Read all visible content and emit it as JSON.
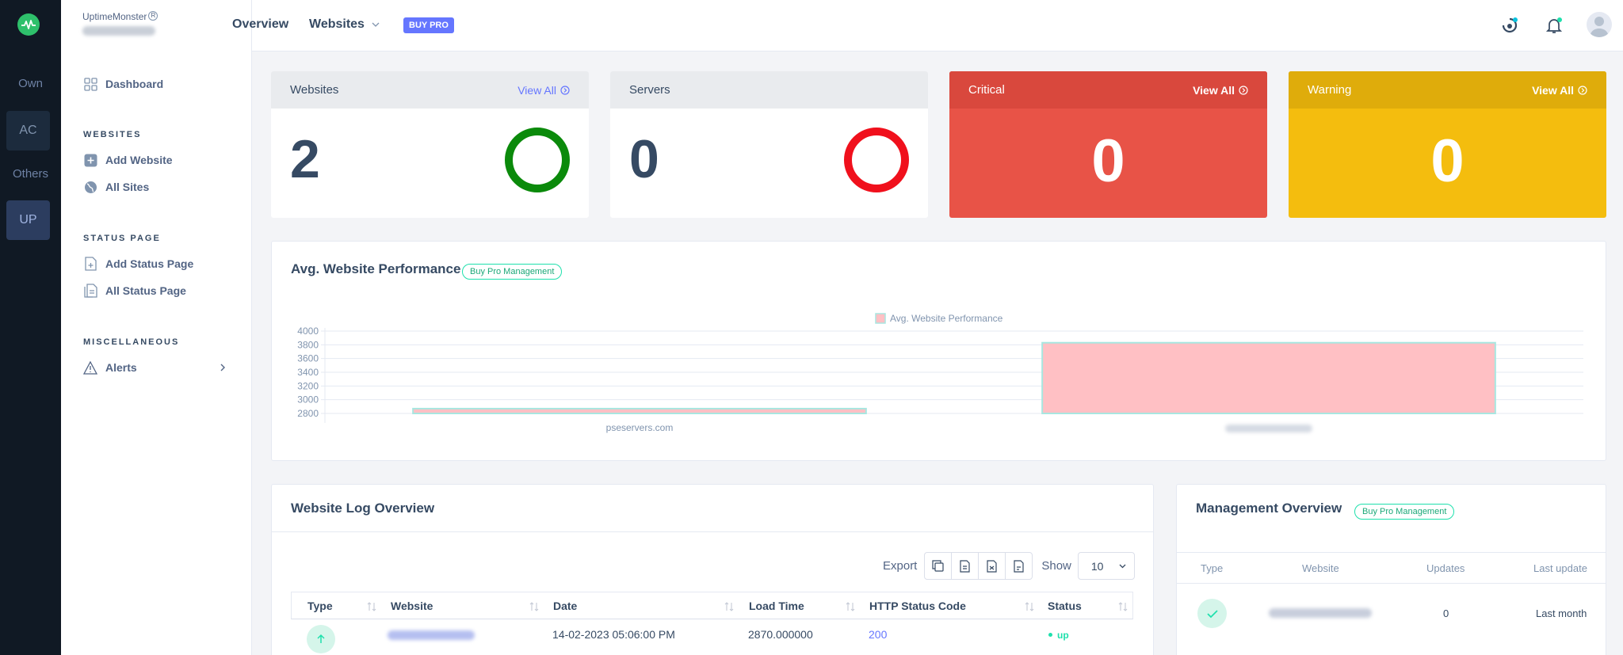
{
  "rail": {
    "items": [
      {
        "label": "Own"
      },
      {
        "label": "AC"
      },
      {
        "label": "Others"
      },
      {
        "label": "UP"
      }
    ]
  },
  "sidebar": {
    "brand": "UptimeMonster",
    "brand_mark": "R",
    "dashboard": "Dashboard",
    "websites_head": "WEBSITES",
    "add_website": "Add Website",
    "all_sites": "All Sites",
    "status_head": "STATUS PAGE",
    "add_status": "Add Status Page",
    "all_status": "All Status Page",
    "misc_head": "MISCELLANEOUS",
    "alerts": "Alerts"
  },
  "topbar": {
    "overview": "Overview",
    "websites": "Websites",
    "buy_pro": "BUY PRO"
  },
  "cards": {
    "websites": {
      "title": "Websites",
      "view_all": "View All",
      "value": "2",
      "ring_color": "#0b8a0b"
    },
    "servers": {
      "title": "Servers",
      "value": "0",
      "ring_color": "#f0101c"
    },
    "critical": {
      "title": "Critical",
      "view_all": "View All",
      "value": "0",
      "color": "#e85347"
    },
    "warning": {
      "title": "Warning",
      "view_all": "View All",
      "value": "0",
      "color": "#f4bd0e"
    }
  },
  "performance": {
    "title": "Avg. Website Performance",
    "pill": "Buy Pro Management"
  },
  "chart_data": {
    "type": "bar",
    "categories": [
      "pseservers.com",
      ""
    ],
    "series": [
      {
        "name": "Avg. Website Performance",
        "values": [
          2870,
          3830
        ]
      }
    ],
    "ylim": [
      2800,
      4000
    ],
    "yticks": [
      "4000",
      "3800",
      "3600",
      "3400",
      "3200",
      "3000",
      "2800"
    ],
    "grid": true,
    "legend": "top",
    "bar_fill": "#ffc0c4",
    "bar_stroke": "#a8e6e0"
  },
  "log": {
    "title": "Website Log Overview",
    "export": "Export",
    "show": "Show",
    "show_value": "10",
    "columns": [
      "Type",
      "Website",
      "Date",
      "Load Time",
      "HTTP Status Code",
      "Status"
    ],
    "row": {
      "date": "14-02-2023 05:06:00 PM",
      "load_time": "2870.000000",
      "code": "200",
      "status": "up"
    }
  },
  "management": {
    "title": "Management Overview",
    "pill": "Buy Pro Management",
    "columns": [
      "Type",
      "Website",
      "Updates",
      "Last update"
    ],
    "row": {
      "updates": "0",
      "last_update": "Last month"
    }
  }
}
